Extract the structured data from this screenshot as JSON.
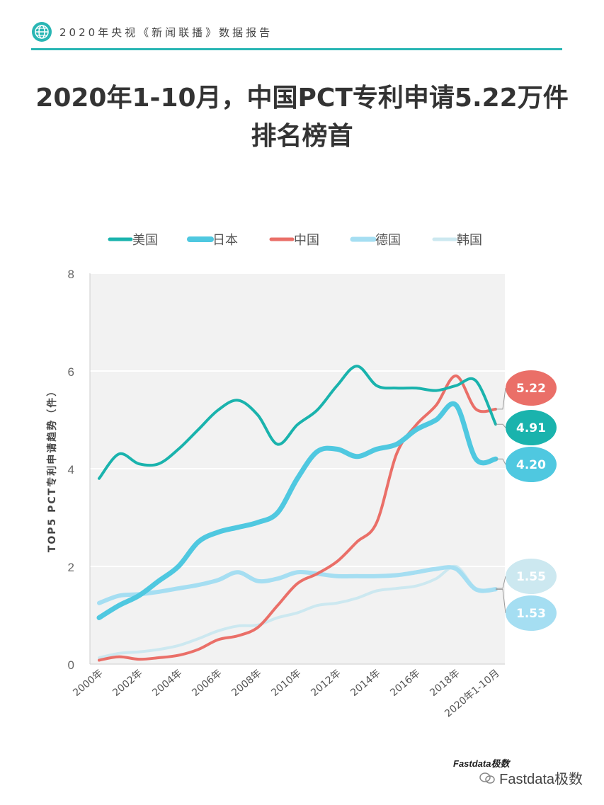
{
  "header": {
    "text": "2020年央视《新闻联播》数据报告"
  },
  "title": {
    "line1": "2020年1-10月，中国PCT专利申请5.22万件",
    "line2": "排名榜首"
  },
  "chart_data": {
    "type": "line",
    "ylabel": "TOP5 PCT专利申请趋势（件）",
    "ylim": [
      0,
      8
    ],
    "yticks": [
      0,
      2,
      4,
      6,
      8
    ],
    "x_labels": [
      "2000年",
      "2002年",
      "2004年",
      "2006年",
      "2008年",
      "2010年",
      "2012年",
      "2014年",
      "2016年",
      "2018年",
      "2020年1-10月"
    ],
    "x": [
      2000,
      2001,
      2002,
      2003,
      2004,
      2005,
      2006,
      2007,
      2008,
      2009,
      2010,
      2011,
      2012,
      2013,
      2014,
      2015,
      2016,
      2017,
      2018,
      2019,
      2020
    ],
    "series": [
      {
        "name": "美国",
        "color": "#1ab3ad",
        "width": 4,
        "values": [
          3.8,
          4.3,
          4.1,
          4.1,
          4.4,
          4.8,
          5.2,
          5.4,
          5.1,
          4.5,
          4.9,
          5.2,
          5.7,
          6.1,
          5.7,
          5.65,
          5.65,
          5.6,
          5.7,
          5.8,
          4.91
        ]
      },
      {
        "name": "日本",
        "color": "#4fc8e0",
        "width": 7,
        "values": [
          0.95,
          1.2,
          1.4,
          1.7,
          2.0,
          2.5,
          2.7,
          2.8,
          2.9,
          3.1,
          3.8,
          4.35,
          4.4,
          4.25,
          4.4,
          4.5,
          4.8,
          5.0,
          5.3,
          4.2,
          4.2
        ]
      },
      {
        "name": "中国",
        "color": "#ea6f68",
        "width": 4,
        "values": [
          0.08,
          0.15,
          0.1,
          0.13,
          0.18,
          0.3,
          0.5,
          0.58,
          0.75,
          1.2,
          1.65,
          1.85,
          2.1,
          2.5,
          2.9,
          4.3,
          4.9,
          5.3,
          5.9,
          5.22,
          5.22
        ]
      },
      {
        "name": "德国",
        "color": "#a5def2",
        "width": 6,
        "values": [
          1.25,
          1.4,
          1.43,
          1.48,
          1.55,
          1.62,
          1.72,
          1.88,
          1.7,
          1.75,
          1.88,
          1.85,
          1.8,
          1.8,
          1.8,
          1.82,
          1.88,
          1.95,
          1.95,
          1.53,
          1.53
        ]
      },
      {
        "name": "韩国",
        "color": "#cce8f0",
        "width": 4,
        "values": [
          0.13,
          0.22,
          0.25,
          0.3,
          0.38,
          0.52,
          0.68,
          0.78,
          0.8,
          0.95,
          1.05,
          1.2,
          1.25,
          1.35,
          1.5,
          1.55,
          1.6,
          1.75,
          2.0,
          1.55,
          1.55
        ]
      }
    ],
    "end_labels": [
      {
        "name": "中国",
        "text": "5.22",
        "color": "#ea6f68"
      },
      {
        "name": "美国",
        "text": "4.91",
        "color": "#1ab3ad"
      },
      {
        "name": "日本",
        "text": "4.20",
        "color": "#4fc8e0"
      },
      {
        "name": "韩国",
        "text": "1.55",
        "color": "#cce8f0"
      },
      {
        "name": "德国",
        "text": "1.53",
        "color": "#a5def2"
      }
    ]
  },
  "footer": {
    "brand": "Fastdata极数",
    "watermark": "Fastdata极数"
  }
}
